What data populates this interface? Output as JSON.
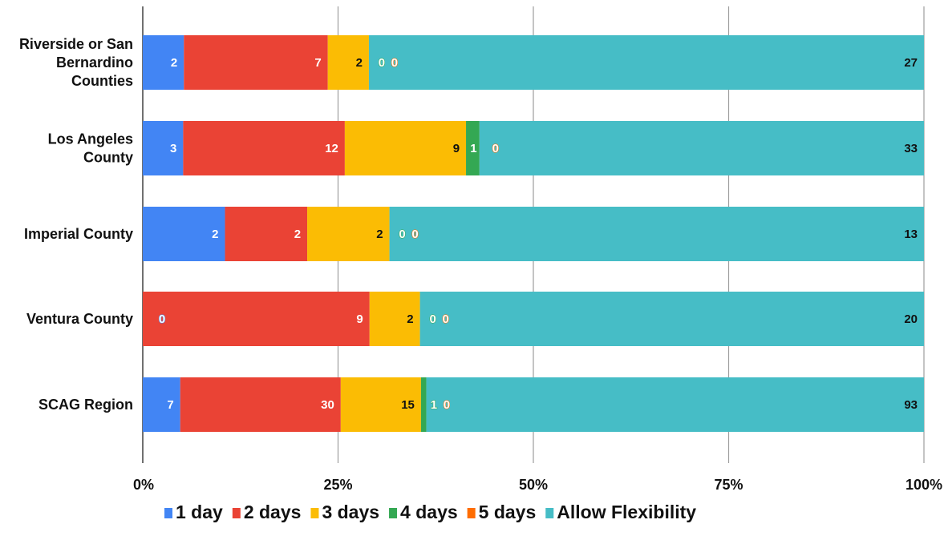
{
  "chart_data": {
    "type": "bar",
    "orientation": "horizontal",
    "stacked": "percent",
    "title": "",
    "xlabel": "",
    "ylabel": "",
    "categories": [
      "Riverside or San Bernardino Counties",
      "Los Angeles County",
      "Imperial County",
      "Ventura County",
      "SCAG Region"
    ],
    "category_lines": [
      [
        "Riverside or San",
        "Bernardino",
        "Counties"
      ],
      [
        "Los Angeles",
        "County"
      ],
      [
        "Imperial County"
      ],
      [
        "Ventura County"
      ],
      [
        "SCAG Region"
      ]
    ],
    "series": [
      {
        "name": "1 day",
        "color": "#4285f4",
        "values": [
          2,
          3,
          2,
          0,
          7
        ]
      },
      {
        "name": "2 days",
        "color": "#ea4335",
        "values": [
          7,
          12,
          2,
          9,
          30
        ]
      },
      {
        "name": "3 days",
        "color": "#fbbc04",
        "values": [
          2,
          9,
          2,
          2,
          15
        ]
      },
      {
        "name": "4 days",
        "color": "#34a853",
        "values": [
          0,
          1,
          0,
          0,
          1
        ]
      },
      {
        "name": "5 days",
        "color": "#ff6d01",
        "values": [
          0,
          0,
          0,
          0,
          0
        ]
      },
      {
        "name": "Allow Flexibility",
        "color": "#46bdc6",
        "values": [
          27,
          33,
          13,
          20,
          93
        ]
      }
    ],
    "x_ticks": [
      "0%",
      "25%",
      "50%",
      "75%",
      "100%"
    ],
    "xlim": [
      0,
      100
    ],
    "grid": true,
    "legend_position": "bottom"
  }
}
